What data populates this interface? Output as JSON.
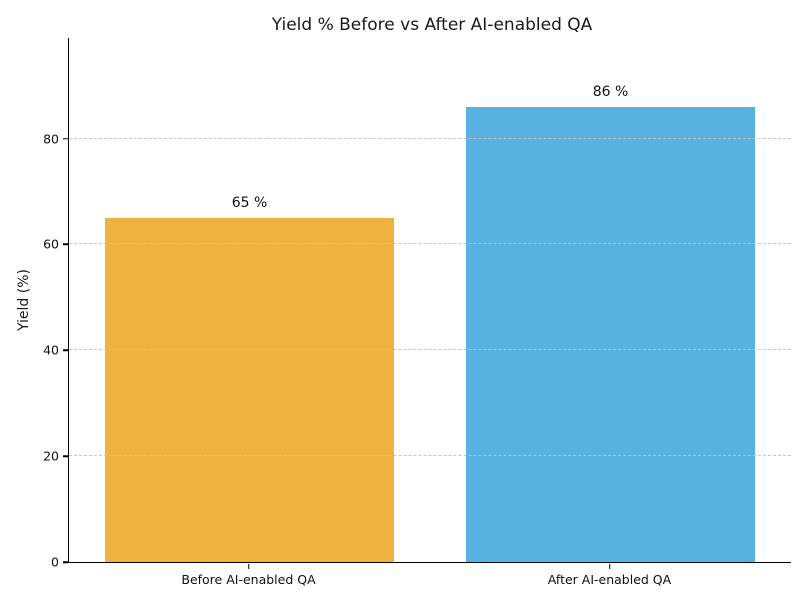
{
  "chart_data": {
    "type": "bar",
    "title": "Yield % Before vs After AI-enabled QA",
    "xlabel": "",
    "ylabel": "Yield (%)",
    "categories": [
      "Before AI-enabled QA",
      "After AI-enabled QA"
    ],
    "values": [
      65,
      86
    ],
    "bar_labels": [
      "65 %",
      "86 %"
    ],
    "bar_colors": [
      "#F0B13E",
      "#58B1E1"
    ],
    "yticks": [
      0,
      20,
      40,
      60,
      80
    ],
    "ylim": [
      0,
      99
    ],
    "grid": "y-axis, dashed, drawn over bars",
    "legend": "none",
    "background": "#ffffff",
    "axis_color": "#000000",
    "grid_color": "#c4c4c4",
    "text_color": "#1a1a1a"
  }
}
